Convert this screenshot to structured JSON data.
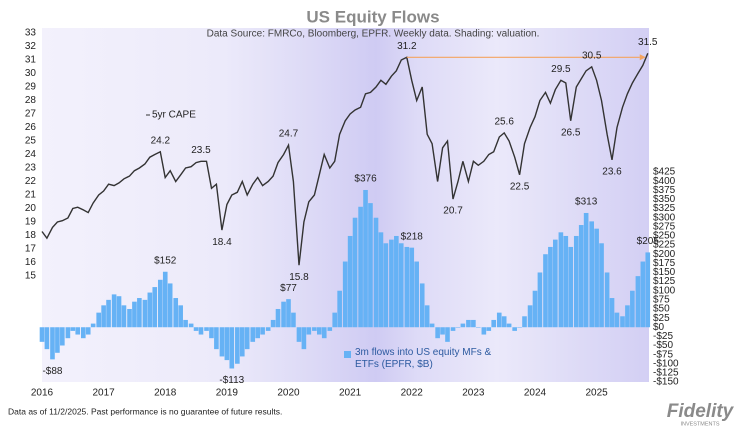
{
  "chart_data": {
    "type": "line+bar",
    "title": "US Equity Flows",
    "subtitle": "Data Source: FMRCo, Bloomberg, EPFR.  Weekly data. Shading: valuation.",
    "footnote": "Data as of 11/2/2025. Past performance is no guarantee of future results.",
    "brand": "Fidelity",
    "brand_sub": "INVESTMENTS",
    "x": [
      2016.0,
      2016.08,
      2016.17,
      2016.25,
      2016.33,
      2016.42,
      2016.5,
      2016.58,
      2016.67,
      2016.75,
      2016.83,
      2016.92,
      2017.0,
      2017.08,
      2017.17,
      2017.25,
      2017.33,
      2017.42,
      2017.5,
      2017.58,
      2017.67,
      2017.75,
      2017.83,
      2017.92,
      2018.0,
      2018.08,
      2018.17,
      2018.25,
      2018.33,
      2018.42,
      2018.5,
      2018.58,
      2018.67,
      2018.75,
      2018.83,
      2018.92,
      2019.0,
      2019.08,
      2019.17,
      2019.25,
      2019.33,
      2019.42,
      2019.5,
      2019.58,
      2019.67,
      2019.75,
      2019.83,
      2019.92,
      2020.0,
      2020.08,
      2020.17,
      2020.25,
      2020.33,
      2020.42,
      2020.5,
      2020.58,
      2020.67,
      2020.75,
      2020.83,
      2020.92,
      2021.0,
      2021.08,
      2021.17,
      2021.25,
      2021.33,
      2021.42,
      2021.5,
      2021.58,
      2021.67,
      2021.75,
      2021.83,
      2021.92,
      2022.0,
      2022.08,
      2022.17,
      2022.25,
      2022.33,
      2022.42,
      2022.5,
      2022.58,
      2022.67,
      2022.75,
      2022.83,
      2022.92,
      2023.0,
      2023.08,
      2023.17,
      2023.25,
      2023.33,
      2023.42,
      2023.5,
      2023.58,
      2023.67,
      2023.75,
      2023.83,
      2023.92,
      2024.0,
      2024.08,
      2024.17,
      2024.25,
      2024.33,
      2024.42,
      2024.5,
      2024.58,
      2024.67,
      2024.75,
      2024.83,
      2024.92,
      2025.0,
      2025.08,
      2025.17,
      2025.25,
      2025.33,
      2025.42,
      2025.5,
      2025.58,
      2025.67,
      2025.75,
      2025.83
    ],
    "series": [
      {
        "name": "5yr CAPE",
        "type": "line",
        "axis": "y",
        "color": "#333333",
        "values": [
          18.3,
          17.8,
          18.6,
          19.0,
          19.1,
          19.3,
          20.0,
          20.1,
          19.9,
          19.7,
          20.4,
          21.0,
          21.3,
          21.8,
          21.7,
          21.9,
          22.2,
          22.4,
          22.8,
          23.0,
          23.3,
          23.8,
          24.0,
          24.2,
          22.3,
          22.8,
          22.0,
          22.5,
          23.0,
          23.1,
          23.4,
          23.5,
          23.5,
          21.5,
          21.8,
          18.4,
          20.3,
          21.0,
          21.2,
          22.0,
          21.0,
          21.8,
          22.3,
          21.7,
          22.0,
          22.4,
          23.4,
          24.0,
          24.7,
          22.0,
          15.8,
          19.0,
          20.5,
          21.0,
          22.5,
          24.0,
          23.0,
          23.5,
          25.5,
          26.5,
          27.0,
          27.3,
          27.5,
          28.5,
          28.6,
          29.0,
          29.5,
          29.2,
          29.8,
          30.2,
          31.0,
          31.2,
          29.5,
          28.0,
          29.0,
          25.5,
          24.8,
          22.0,
          24.5,
          25.0,
          20.7,
          22.0,
          23.5,
          22.0,
          23.5,
          23.2,
          23.5,
          24.0,
          24.2,
          25.3,
          25.6,
          25.0,
          23.8,
          22.5,
          24.8,
          26.0,
          26.8,
          28.0,
          28.6,
          27.8,
          28.8,
          29.5,
          29.3,
          26.5,
          29.0,
          29.6,
          30.2,
          30.5,
          29.5,
          28.0,
          25.5,
          23.6,
          26.0,
          27.5,
          28.5,
          29.3,
          30.0,
          30.6,
          31.5
        ]
      },
      {
        "name": "3m flows into US equity MFs & ETFs (EPFR, $B)",
        "type": "bar",
        "axis": "y2",
        "color": "#66b2f5",
        "values": [
          -40,
          -60,
          -88,
          -70,
          -50,
          -30,
          -10,
          -20,
          -30,
          -20,
          10,
          40,
          60,
          75,
          90,
          85,
          60,
          50,
          70,
          80,
          75,
          95,
          110,
          130,
          152,
          120,
          80,
          60,
          20,
          10,
          -10,
          -20,
          -10,
          -30,
          -60,
          -80,
          -90,
          -113,
          -100,
          -80,
          -60,
          -40,
          -30,
          -20,
          -10,
          20,
          50,
          70,
          77,
          40,
          -40,
          -60,
          -20,
          -10,
          -20,
          -30,
          -10,
          40,
          100,
          180,
          250,
          300,
          330,
          376,
          340,
          300,
          260,
          230,
          240,
          250,
          230,
          220,
          218,
          180,
          120,
          60,
          10,
          -30,
          -20,
          -40,
          -10,
          0,
          10,
          20,
          20,
          0,
          -20,
          -10,
          20,
          40,
          30,
          10,
          -10,
          0,
          30,
          60,
          100,
          150,
          200,
          220,
          240,
          260,
          250,
          220,
          250,
          280,
          313,
          290,
          270,
          230,
          150,
          80,
          40,
          30,
          60,
          100,
          140,
          180,
          205
        ]
      }
    ],
    "xlim": [
      2016,
      2025.85
    ],
    "xticks": [
      2016,
      2017,
      2018,
      2019,
      2020,
      2021,
      2022,
      2023,
      2024,
      2025
    ],
    "ylim": [
      7.15,
      33
    ],
    "yticks": [
      15,
      16,
      17,
      18,
      19,
      20,
      21,
      22,
      23,
      24,
      25,
      26,
      27,
      28,
      29,
      30,
      31,
      32,
      33
    ],
    "y2lim": [
      -150,
      806
    ],
    "y2ticks": [
      {
        "value": 425,
        "label": "$425"
      },
      {
        "value": 400,
        "label": "$400"
      },
      {
        "value": 375,
        "label": "$375"
      },
      {
        "value": 350,
        "label": "$350"
      },
      {
        "value": 325,
        "label": "$325"
      },
      {
        "value": 300,
        "label": "$300"
      },
      {
        "value": 275,
        "label": "$275"
      },
      {
        "value": 250,
        "label": "$250"
      },
      {
        "value": 225,
        "label": "$225"
      },
      {
        "value": 200,
        "label": "$200"
      },
      {
        "value": 175,
        "label": "$175"
      },
      {
        "value": 150,
        "label": "$150"
      },
      {
        "value": 125,
        "label": "$125"
      },
      {
        "value": 100,
        "label": "$100"
      },
      {
        "value": 75,
        "label": "$75"
      },
      {
        "value": 50,
        "label": "$50"
      },
      {
        "value": 25,
        "label": "$25"
      },
      {
        "value": 0,
        "label": "$0"
      },
      {
        "value": -25,
        "label": "-$25"
      },
      {
        "value": -50,
        "label": "-$50"
      },
      {
        "value": -75,
        "label": "-$75"
      },
      {
        "value": -100,
        "label": "-$100"
      },
      {
        "value": -125,
        "label": "-$125"
      },
      {
        "value": -150,
        "label": "-$150"
      }
    ],
    "annotations": [
      {
        "x": 2017.92,
        "y": 24.2
      },
      {
        "x": 2018.58,
        "y": 23.5
      },
      {
        "x": 2018.92,
        "y": 18.4
      },
      {
        "x": 2020.0,
        "y": 24.7
      },
      {
        "x": 2020.17,
        "y": 15.8
      },
      {
        "x": 2021.92,
        "y": 31.2
      },
      {
        "x": 2022.67,
        "y": 20.7
      },
      {
        "x": 2023.5,
        "y": 25.6
      },
      {
        "x": 2023.75,
        "y": 22.5
      },
      {
        "x": 2024.42,
        "y": 29.5
      },
      {
        "x": 2024.58,
        "y": 26.5
      },
      {
        "x": 2024.92,
        "y": 30.5
      },
      {
        "x": 2025.25,
        "y": 23.6
      },
      {
        "x": 2025.83,
        "y": 31.5
      },
      {
        "x": 2016.17,
        "y": -88,
        "label": "-$88",
        "axis": "y2"
      },
      {
        "x": 2018.0,
        "y": 152,
        "label": "$152",
        "axis": "y2"
      },
      {
        "x": 2019.08,
        "y": -113,
        "label": "-$113",
        "axis": "y2"
      },
      {
        "x": 2020.0,
        "y": 77,
        "label": "$77",
        "axis": "y2"
      },
      {
        "x": 2021.25,
        "y": 376,
        "label": "$376",
        "axis": "y2"
      },
      {
        "x": 2022.0,
        "y": 218,
        "label": "$218",
        "axis": "y2"
      },
      {
        "x": 2024.83,
        "y": 313,
        "label": "$313",
        "axis": "y2"
      },
      {
        "x": 2025.83,
        "y": 205,
        "label": "$205",
        "axis": "y2"
      }
    ],
    "arrow": {
      "x0": 2021.92,
      "x1": 2025.7,
      "y": 31.2,
      "color": "#f4a460"
    }
  }
}
